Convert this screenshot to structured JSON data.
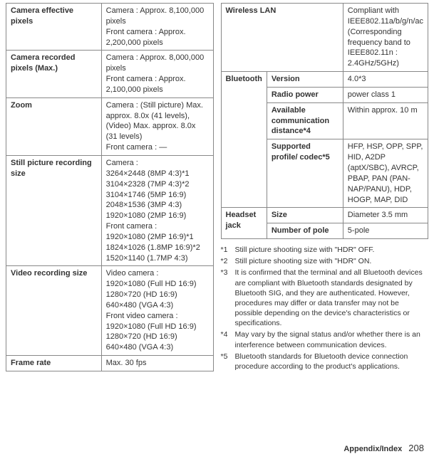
{
  "left_table": {
    "rows": [
      {
        "label": "Camera effective pixels",
        "value": "Camera : Approx. 8,100,000 pixels\nFront camera : Approx. 2,200,000 pixels"
      },
      {
        "label": "Camera recorded pixels (Max.)",
        "value": "Camera : Approx. 8,000,000 pixels\nFront camera : Approx. 2,100,000 pixels"
      },
      {
        "label": "Zoom",
        "value": "Camera : (Still picture) Max. approx. 8.0x (41 levels), (Video) Max. approx. 8.0x (31 levels)\nFront camera : ―"
      },
      {
        "label": "Still picture recording size",
        "value": "Camera :\n3264×2448 (8MP 4:3)*1\n3104×2328 (7MP 4:3)*2\n3104×1746 (5MP 16:9)\n2048×1536 (3MP 4:3)\n1920×1080 (2MP 16:9)\nFront camera :\n1920×1080 (2MP 16:9)*1\n1824×1026 (1.8MP 16:9)*2\n1520×1140 (1.7MP 4:3)"
      },
      {
        "label": "Video recording size",
        "value": "Video camera :\n1920×1080 (Full HD 16:9)\n1280×720 (HD 16:9)\n640×480 (VGA 4:3)\nFront video camera :\n1920×1080 (Full HD 16:9)\n1280×720 (HD 16:9)\n640×480 (VGA 4:3)"
      },
      {
        "label": "Frame rate",
        "value": "Max. 30 fps"
      }
    ]
  },
  "right_table": {
    "wlan": {
      "label": "Wireless LAN",
      "value": "Compliant with IEEE802.11a/b/g/n/ac (Corresponding frequency band to IEEE802.11n : 2.4GHz/5GHz)"
    },
    "bluetooth": {
      "group": "Bluetooth",
      "rows": [
        {
          "label": "Version",
          "value": "4.0*3"
        },
        {
          "label": "Radio power",
          "value": "power class 1"
        },
        {
          "label": "Available communication distance*4",
          "value": "Within approx. 10 m"
        },
        {
          "label": "Supported profile/ codec*5",
          "value": "HFP, HSP, OPP, SPP, HID, A2DP (aptX/SBC), AVRCP, PBAP, PAN (PAN-NAP/PANU), HDP, HOGP, MAP, DID"
        }
      ]
    },
    "headset": {
      "group": "Headset jack",
      "rows": [
        {
          "label": "Size",
          "value": "Diameter 3.5 mm"
        },
        {
          "label": "Number of pole",
          "value": "5-pole"
        }
      ]
    }
  },
  "footnotes": [
    {
      "mark": "*1",
      "text": "Still picture shooting size with \"HDR\" OFF."
    },
    {
      "mark": "*2",
      "text": "Still picture shooting size with \"HDR\" ON."
    },
    {
      "mark": "*3",
      "text": "It is confirmed that the terminal and all Bluetooth devices are compliant with Bluetooth standards designated by Bluetooth SIG, and they are authenticated. However, procedures may differ or data transfer may not be possible depending on the device's characteristics or specifications."
    },
    {
      "mark": "*4",
      "text": "May vary by the signal status and/or whether there is an interference between communication devices."
    },
    {
      "mark": "*5",
      "text": "Bluetooth standards for Bluetooth device connection procedure according to the product's applications."
    }
  ],
  "footer": {
    "section": "Appendix/Index",
    "page": "208"
  }
}
